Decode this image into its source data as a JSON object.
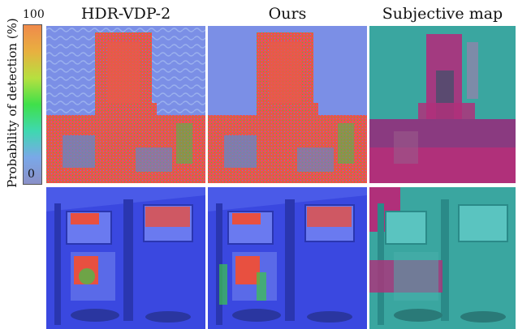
{
  "columns": [
    {
      "title": "HDR-VDP-2"
    },
    {
      "title": "Ours"
    },
    {
      "title": "Subjective map"
    }
  ],
  "colorbar": {
    "label": "Probability of detection (%)",
    "max_label": "100",
    "min_label": "0",
    "stops": [
      "#f08a4b",
      "#e8b040",
      "#b6e040",
      "#3fe04a",
      "#3fd8b0",
      "#7aa8e8",
      "#8a90c8"
    ]
  },
  "colors": {
    "vdp_background_blue": "#7b8fe6",
    "vdp_detection_red": "#f0504a",
    "vdp_green": "#3ac84a",
    "room_blue": "#3a48e0",
    "subjective_teal": "#3aa6a0",
    "subjective_magenta": "#b0307a"
  },
  "rows": [
    {
      "scene": "city skyline with tower"
    },
    {
      "scene": "room interior with windows"
    }
  ]
}
